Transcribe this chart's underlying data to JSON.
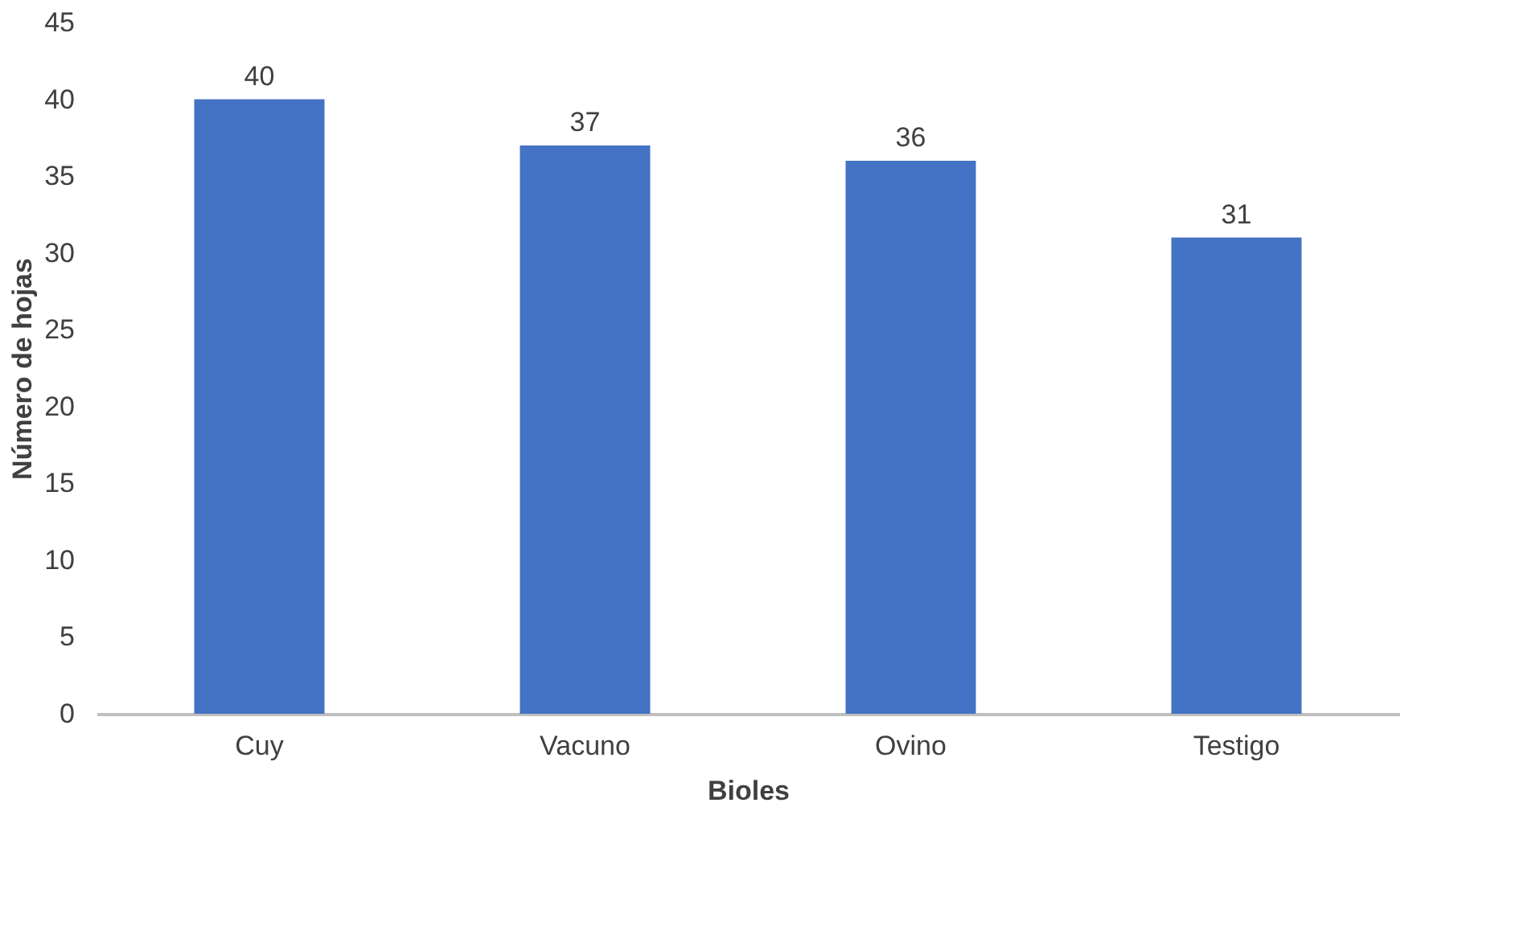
{
  "chart_data": {
    "type": "bar",
    "xlabel": "Bioles",
    "ylabel": "Número de hojas",
    "categories": [
      "Cuy",
      "Vacuno",
      "Ovino",
      "Testigo"
    ],
    "values": [
      40,
      37,
      36,
      31
    ],
    "color": "#4472c4",
    "ylim": [
      0,
      45
    ],
    "yticks": [
      0,
      5,
      10,
      15,
      20,
      25,
      30,
      35,
      40,
      45
    ],
    "data_labels": true,
    "grid": false
  }
}
